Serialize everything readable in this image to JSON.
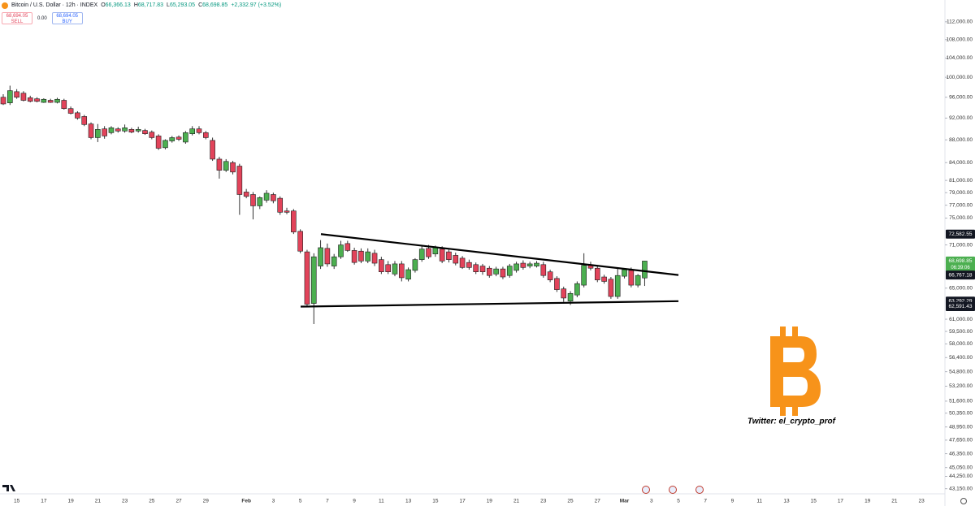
{
  "chart_data": {
    "type": "candlestick",
    "title": "Bitcoin / U.S. Dollar · 12h · INDEX",
    "ohlc": [
      {
        "label": "O",
        "value": "66,366.13"
      },
      {
        "label": "H",
        "value": "68,717.83"
      },
      {
        "label": "L",
        "value": "65,293.05"
      },
      {
        "label": "C",
        "value": "68,698.85"
      }
    ],
    "change": "+2,332.97 (+3.52%)",
    "trade_panel": {
      "sell_price": "68,694.05",
      "sell": "SELL",
      "spread": "0.00",
      "buy_price": "68,694.05",
      "buy": "BUY"
    },
    "watermark": "Twitter: el_crypto_prof",
    "log_scale": true,
    "grid": false,
    "up_color": "#4caf50",
    "down_color": "#e2435a",
    "border_color": "#1e1e1e",
    "wick_color": "#333333",
    "trendline_color": "#000000",
    "ylim": [
      42700,
      117100
    ],
    "yticks": [
      {
        "value": 112000,
        "label": "112,000.00"
      },
      {
        "value": 108000,
        "label": "108,000.00"
      },
      {
        "value": 104000,
        "label": "104,000.00"
      },
      {
        "value": 100000,
        "label": "100,000.00"
      },
      {
        "value": 96000,
        "label": "96,000.00"
      },
      {
        "value": 92000,
        "label": "92,000.00"
      },
      {
        "value": 88000,
        "label": "88,000.00"
      },
      {
        "value": 84000,
        "label": "84,000.00"
      },
      {
        "value": 81000,
        "label": "81,000.00"
      },
      {
        "value": 79000,
        "label": "79,000.00"
      },
      {
        "value": 77000,
        "label": "77,000.00"
      },
      {
        "value": 75000,
        "label": "75,000.00"
      },
      {
        "value": 71000,
        "label": "71,000.00"
      },
      {
        "value": 65000,
        "label": "65,000.00"
      },
      {
        "value": 61000,
        "label": "61,000.00"
      },
      {
        "value": 59500,
        "label": "59,500.00"
      },
      {
        "value": 58000,
        "label": "58,000.00"
      },
      {
        "value": 56400,
        "label": "56,400.00"
      },
      {
        "value": 54800,
        "label": "54,800.00"
      },
      {
        "value": 53200,
        "label": "53,200.00"
      },
      {
        "value": 51600,
        "label": "51,600.00"
      },
      {
        "value": 50350,
        "label": "50,350.00"
      },
      {
        "value": 48950,
        "label": "48,950.00"
      },
      {
        "value": 47650,
        "label": "47,650.00"
      },
      {
        "value": 46350,
        "label": "46,350.00"
      },
      {
        "value": 45050,
        "label": "45,050.00"
      },
      {
        "value": 44250,
        "label": "44,250.00"
      },
      {
        "value": 43150,
        "label": "43,150.00"
      }
    ],
    "price_labels": [
      {
        "value": 72582.55,
        "label": "72,582.55",
        "color": "#131722"
      },
      {
        "value": 68698.85,
        "label": "68,698.85",
        "color": "#4caf50",
        "countdown": "06:39:06"
      },
      {
        "value": 66767.18,
        "label": "66,767.18",
        "color": "#131722"
      },
      {
        "value": 63292.29,
        "label": "63,292.29",
        "color": "#131722"
      },
      {
        "value": 62591.43,
        "label": "62,591.43",
        "color": "#131722"
      }
    ],
    "trendlines": [
      {
        "start": 72582.55,
        "end": 66767.18
      },
      {
        "start": 62591.43,
        "end": 63292.29
      }
    ],
    "categories": [
      null,
      null,
      "15",
      null,
      null,
      null,
      "17",
      null,
      null,
      null,
      "19",
      null,
      null,
      null,
      "21",
      null,
      null,
      null,
      "23",
      null,
      null,
      null,
      "25",
      null,
      null,
      null,
      "27",
      null,
      null,
      null,
      "29",
      null,
      null,
      null,
      null,
      null,
      "Feb",
      null,
      null,
      null,
      "3",
      null,
      null,
      null,
      "5",
      null,
      null,
      null,
      "7",
      null,
      null,
      null,
      "9",
      null,
      null,
      null,
      "11",
      null,
      null,
      null,
      "13",
      null,
      null,
      null,
      "15",
      null,
      null,
      null,
      "17",
      null,
      null,
      null,
      "19",
      null,
      null,
      null,
      "21",
      null,
      null,
      null,
      "23",
      null,
      null,
      null,
      "25",
      null,
      null,
      null,
      "27",
      null,
      null,
      null,
      "Mar",
      null,
      null,
      null,
      "3",
      null,
      null,
      null,
      "5",
      null,
      null,
      null,
      "7",
      null,
      null,
      null,
      "9",
      null,
      null,
      null,
      "11",
      null,
      null,
      null,
      "13",
      null,
      null,
      null,
      "15",
      null,
      null,
      null,
      "17",
      null,
      null,
      null,
      "19",
      null,
      null,
      null,
      "21",
      null,
      null,
      null,
      "23",
      null,
      null,
      null
    ],
    "open": [
      96000,
      94900,
      97100,
      96800,
      95900,
      95700,
      95000,
      95400,
      95000,
      95400,
      93800,
      93000,
      92300,
      90900,
      88400,
      90000,
      89300,
      90000,
      89600,
      89900,
      89600,
      89700,
      89400,
      88700,
      86600,
      87800,
      88500,
      87600,
      89100,
      90000,
      89300,
      87900,
      84600,
      82700,
      84000,
      83400,
      79100,
      78700,
      76900,
      77800,
      78700,
      78100,
      76100,
      76100,
      73000,
      70000,
      63000,
      68000,
      70500,
      68000,
      69300,
      71200,
      70200,
      70100,
      68700,
      69800,
      68900,
      68200,
      66900,
      68300,
      66200,
      67400,
      68900,
      70500,
      69700,
      70400,
      70000,
      69500,
      69100,
      68500,
      68200,
      68000,
      67700,
      66900,
      67600,
      66700,
      67400,
      68400,
      68000,
      68000,
      68200,
      67200,
      66300,
      64900,
      63300,
      64100,
      65400,
      68200,
      67700,
      66500,
      66200,
      63900,
      66600,
      67400,
      65400,
      66366.13,
      null,
      null,
      null,
      null,
      null,
      null,
      null,
      null,
      null,
      null,
      null,
      null,
      null,
      null,
      null,
      null,
      null,
      null,
      null,
      null,
      null,
      null,
      null,
      null,
      null,
      null,
      null,
      null,
      null,
      null,
      null,
      null,
      null,
      null,
      null,
      null,
      null,
      null,
      null,
      null,
      null,
      null,
      null,
      null
    ],
    "high": [
      96600,
      98300,
      97600,
      97200,
      96300,
      96000,
      95800,
      95700,
      95900,
      95700,
      94200,
      93300,
      92600,
      91200,
      90900,
      90500,
      90500,
      90300,
      90800,
      90200,
      90400,
      90000,
      89700,
      89000,
      88100,
      88700,
      88800,
      89600,
      90500,
      90500,
      89600,
      88400,
      85000,
      84600,
      84300,
      83800,
      79600,
      79100,
      78400,
      79400,
      79000,
      78400,
      76600,
      76400,
      73300,
      70300,
      69800,
      71700,
      71200,
      69700,
      71600,
      71600,
      70600,
      70500,
      70500,
      70300,
      69300,
      68700,
      68700,
      68700,
      67800,
      69100,
      70800,
      71000,
      70900,
      70800,
      70300,
      69900,
      69400,
      68900,
      68500,
      68300,
      68000,
      67900,
      67900,
      68300,
      68600,
      68800,
      68600,
      68700,
      68600,
      67500,
      66600,
      65200,
      64600,
      65900,
      69800,
      68600,
      68000,
      66800,
      66500,
      67800,
      67700,
      67800,
      66900,
      68717.83,
      null,
      null,
      null,
      null,
      null,
      null,
      null,
      null,
      null,
      null,
      null,
      null,
      null,
      null,
      null,
      null,
      null,
      null,
      null,
      null,
      null,
      null,
      null,
      null,
      null,
      null,
      null,
      null,
      null,
      null,
      null,
      null,
      null,
      null,
      null,
      null,
      null,
      null,
      null,
      null,
      null,
      null,
      null,
      null
    ],
    "low": [
      94500,
      94500,
      95700,
      95200,
      95000,
      95000,
      94900,
      94900,
      94800,
      93600,
      92700,
      91700,
      90500,
      88100,
      87600,
      88200,
      89000,
      89300,
      89300,
      89200,
      89300,
      88900,
      88100,
      86200,
      86300,
      87500,
      87800,
      87300,
      88800,
      89000,
      88100,
      84300,
      81300,
      82400,
      82000,
      75500,
      78100,
      74800,
      76400,
      77400,
      77300,
      75500,
      75600,
      72600,
      69800,
      62600,
      60400,
      67600,
      67900,
      67600,
      69000,
      70000,
      68200,
      68400,
      68400,
      68000,
      66900,
      66900,
      66600,
      65900,
      65900,
      67100,
      68600,
      69000,
      69300,
      68400,
      68500,
      68100,
      67600,
      67500,
      66900,
      66800,
      66400,
      66600,
      66200,
      66400,
      67100,
      67500,
      67700,
      67800,
      66400,
      65800,
      64500,
      63200,
      62800,
      63800,
      65100,
      67400,
      65800,
      65600,
      63600,
      63600,
      66300,
      65100,
      65100,
      65293.05,
      null,
      null,
      null,
      null,
      null,
      null,
      null,
      null,
      null,
      null,
      null,
      null,
      null,
      null,
      null,
      null,
      null,
      null,
      null,
      null,
      null,
      null,
      null,
      null,
      null,
      null,
      null,
      null,
      null,
      null,
      null,
      null,
      null,
      null,
      null,
      null,
      null,
      null,
      null,
      null,
      null,
      null,
      null,
      null
    ],
    "close": [
      94700,
      97300,
      96000,
      95400,
      95200,
      95200,
      95600,
      95000,
      95600,
      93800,
      92900,
      92000,
      90800,
      88400,
      89900,
      88700,
      90200,
      89600,
      90200,
      89400,
      89900,
      89100,
      88400,
      86500,
      87900,
      88400,
      88100,
      89300,
      90000,
      89300,
      88400,
      84600,
      82700,
      84200,
      82400,
      78700,
      78400,
      76900,
      78200,
      78900,
      77700,
      75900,
      75900,
      72900,
      70100,
      62900,
      69300,
      70600,
      68300,
      69300,
      71000,
      70200,
      68500,
      68700,
      70000,
      68400,
      67200,
      67200,
      68300,
      66400,
      67500,
      68900,
      70400,
      69300,
      70600,
      68700,
      68900,
      68400,
      67800,
      67800,
      67200,
      67200,
      66700,
      67600,
      66500,
      68000,
      68300,
      67800,
      68300,
      68400,
      66700,
      66100,
      64800,
      63700,
      64300,
      65600,
      68100,
      67700,
      66100,
      65900,
      63900,
      66700,
      67500,
      65400,
      66700,
      68698.85,
      null,
      null,
      null,
      null,
      null,
      null,
      null,
      null,
      null,
      null,
      null,
      null,
      null,
      null,
      null,
      null,
      null,
      null,
      null,
      null,
      null,
      null,
      null,
      null,
      null,
      null,
      null,
      null,
      null,
      null,
      null,
      null,
      null,
      null,
      null,
      null,
      null,
      null,
      null,
      null,
      null,
      null,
      null,
      null
    ]
  }
}
